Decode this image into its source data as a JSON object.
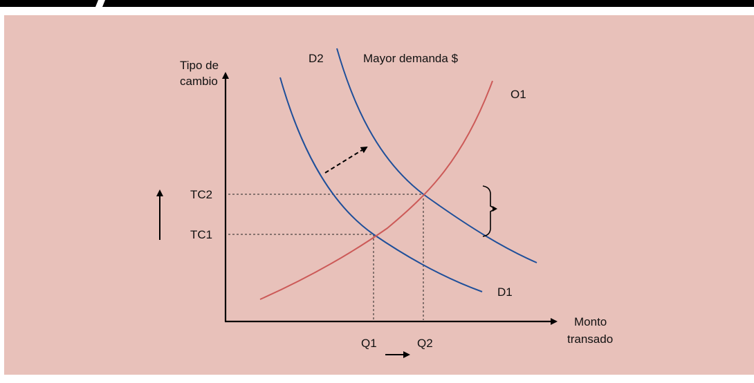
{
  "colors": {
    "panel_background": "#e8c1ba",
    "header_bar": "#000000",
    "axis": "#000000",
    "demand_curve": "#1f4f9a",
    "supply_curve": "#cc5a58",
    "guide_lines": "#222222"
  },
  "labels": {
    "y_axis_line1": "Tipo de",
    "y_axis_line2": "cambio",
    "x_axis_line1": "Monto",
    "x_axis_line2": "transado",
    "tc1": "TC1",
    "tc2": "TC2",
    "q1": "Q1",
    "q2": "Q2",
    "d1": "D1",
    "d2": "D2",
    "o1": "O1",
    "shift_note": "Mayor demanda $"
  }
}
